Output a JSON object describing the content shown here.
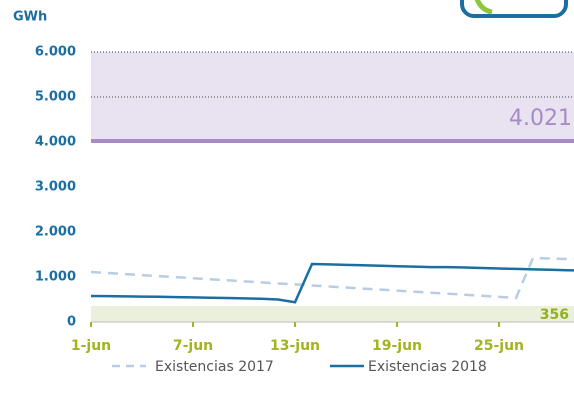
{
  "chart_data": {
    "type": "line",
    "y_label": "GWh",
    "categories": [
      "1-jun",
      null,
      null,
      null,
      null,
      null,
      "7-jun",
      null,
      null,
      null,
      null,
      null,
      "13-jun",
      null,
      null,
      null,
      null,
      null,
      "19-jun",
      null,
      null,
      null,
      null,
      null,
      "25-jun",
      null,
      null,
      null,
      null,
      null
    ],
    "series": [
      {
        "name": "Existencias 2017",
        "color": "#b8cde3",
        "dashed": true,
        "values": [
          1111,
          1088,
          1065,
          1042,
          1019,
          996,
          973,
          950,
          927,
          904,
          881,
          858,
          835,
          812,
          789,
          766,
          743,
          720,
          697,
          674,
          651,
          628,
          605,
          582,
          559,
          533,
          1422,
          1410,
          1400,
          1390
        ]
      },
      {
        "name": "Existencias 2018",
        "color": "#1a6fa0",
        "dashed": false,
        "values": [
          578,
          575,
          570,
          565,
          560,
          553,
          546,
          539,
          532,
          524,
          516,
          500,
          440,
          1289,
          1280,
          1270,
          1260,
          1250,
          1240,
          1230,
          1220,
          1220,
          1210,
          1200,
          1190,
          1180,
          1170,
          1160,
          1150,
          1140
        ]
      }
    ],
    "annotations": [
      {
        "value": 4021,
        "label": "4.021",
        "color": "#a68bc6",
        "band": "above",
        "band_color": "#e9e2f0"
      },
      {
        "value": 356,
        "label": "356",
        "color": "#93b020",
        "band": "below",
        "band_color": "#eaf0dc"
      }
    ],
    "ylim": [
      0,
      6000
    ],
    "yticks": [
      {
        "value": 0,
        "label": "0"
      },
      {
        "value": 1000,
        "label": "1.000"
      },
      {
        "value": 2000,
        "label": "2.000"
      },
      {
        "value": 3000,
        "label": "3.000"
      },
      {
        "value": 4000,
        "label": "4.000"
      },
      {
        "value": 5000,
        "label": "5.000"
      },
      {
        "value": 6000,
        "label": "6.000"
      }
    ]
  }
}
